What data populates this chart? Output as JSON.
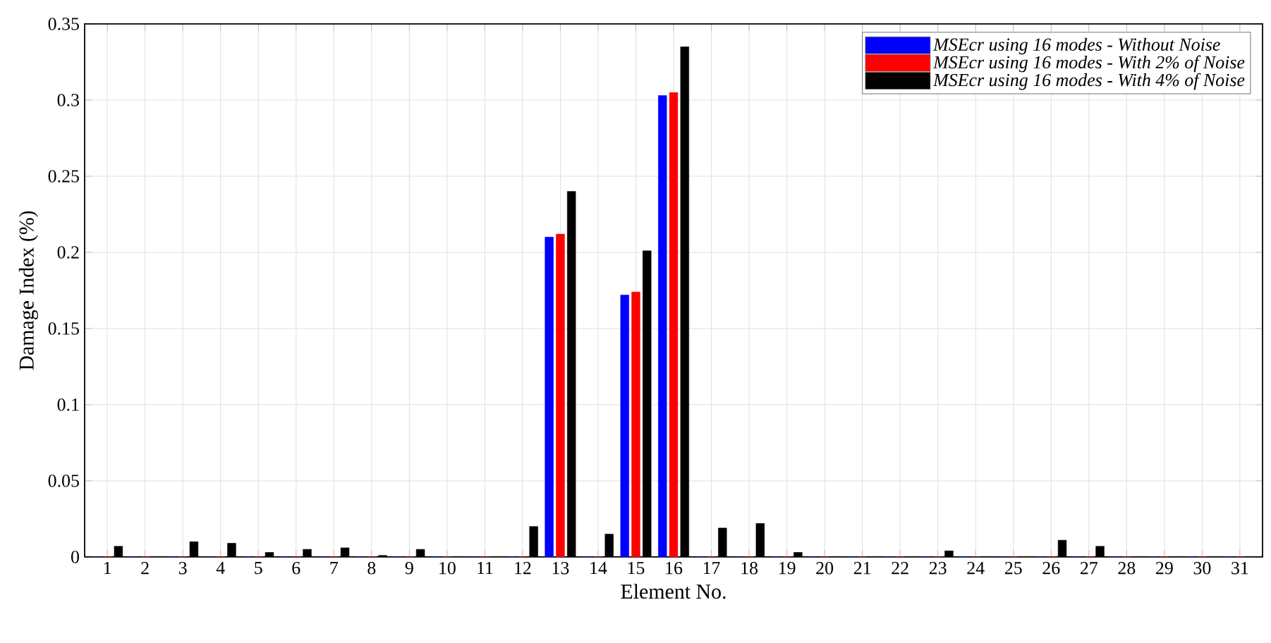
{
  "chart_data": {
    "type": "bar",
    "xlabel": "Element No.",
    "ylabel": "Damage Index (%)",
    "categories": [
      "1",
      "2",
      "3",
      "4",
      "5",
      "6",
      "7",
      "8",
      "9",
      "10",
      "11",
      "12",
      "13",
      "14",
      "15",
      "16",
      "17",
      "18",
      "19",
      "20",
      "21",
      "22",
      "23",
      "24",
      "25",
      "26",
      "27",
      "28",
      "29",
      "30",
      "31"
    ],
    "series": [
      {
        "name": "MSEcr using 16 modes - Without Noise",
        "color": "#0000ff",
        "values": [
          0,
          0,
          0,
          0,
          0,
          0,
          0,
          0,
          0,
          0,
          0,
          0,
          0.21,
          0,
          0.172,
          0.303,
          0,
          0,
          0,
          0,
          0,
          0,
          0,
          0,
          0,
          0,
          0,
          0,
          0,
          0,
          0
        ]
      },
      {
        "name": "MSEcr using 16 modes - With 2% of Noise",
        "color": "#ff0000",
        "values": [
          0,
          0,
          0,
          0,
          0,
          0,
          0,
          0,
          0,
          0,
          0,
          0,
          0.212,
          0,
          0.174,
          0.305,
          0,
          0,
          0,
          0,
          0,
          0,
          0,
          0,
          0,
          0,
          0,
          0,
          0,
          0,
          0
        ]
      },
      {
        "name": "MSEcr using 16 modes - With 4% of Noise",
        "color": "#000000",
        "values": [
          0.007,
          0,
          0.01,
          0.009,
          0.003,
          0.005,
          0.006,
          0.001,
          0.005,
          0,
          0,
          0.02,
          0.24,
          0.015,
          0.201,
          0.335,
          0.019,
          0.022,
          0.003,
          0,
          0,
          0,
          0.004,
          0,
          0,
          0.011,
          0.007,
          0,
          0,
          0,
          0
        ]
      }
    ],
    "ylim": [
      0,
      0.35
    ],
    "yticks": [
      0,
      0.05,
      0.1,
      0.15,
      0.2,
      0.25,
      0.3,
      0.35
    ],
    "grid": true,
    "legend": "top right"
  }
}
